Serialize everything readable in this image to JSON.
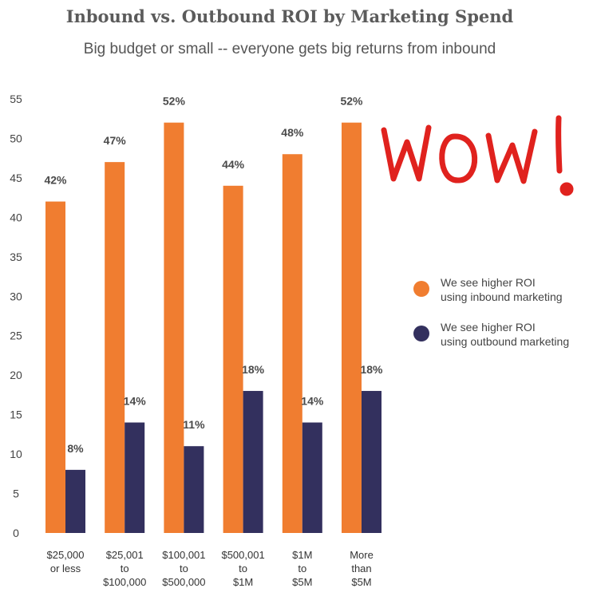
{
  "chart_data": {
    "type": "bar",
    "title": "Inbound vs. Outbound ROI by Marketing Spend",
    "subtitle": "Big budget or small -- everyone gets big returns from inbound",
    "categories": [
      [
        "$25,000",
        "or less"
      ],
      [
        "$25,001",
        "to",
        "$100,000"
      ],
      [
        "$100,001",
        "to",
        "$500,000"
      ],
      [
        "$500,001",
        "to",
        "$1M"
      ],
      [
        "$1M",
        "to",
        "$5M"
      ],
      [
        "More",
        "than",
        "$5M"
      ]
    ],
    "series": [
      {
        "name": "We see higher ROI using inbound marketing",
        "legend_lines": [
          "We see higher ROI",
          "using inbound marketing"
        ],
        "color": "#f07d30",
        "values": [
          42,
          47,
          52,
          44,
          48,
          52
        ],
        "labels": [
          "42%",
          "47%",
          "52%",
          "44%",
          "48%",
          "52%"
        ]
      },
      {
        "name": "We see higher ROI using outbound marketing",
        "legend_lines": [
          "We see higher ROI",
          "using outbound marketing"
        ],
        "color": "#33305e",
        "values": [
          8,
          14,
          11,
          18,
          14,
          18
        ],
        "labels": [
          "8%",
          "14%",
          "11%",
          "18%",
          "14%",
          "18%"
        ]
      }
    ],
    "ylim": [
      0,
      55
    ],
    "yticks": [
      0,
      5,
      10,
      15,
      20,
      25,
      30,
      35,
      40,
      45,
      50,
      55
    ],
    "grid": false,
    "legend_position": "right",
    "xlabel": "",
    "ylabel": ""
  },
  "annotation": {
    "text": "WOW!",
    "color": "#e0221e"
  }
}
